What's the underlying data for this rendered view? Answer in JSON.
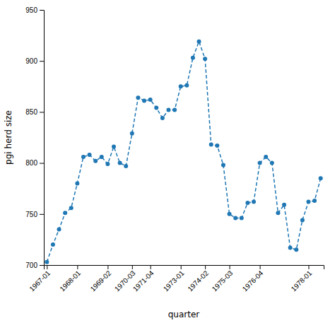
{
  "chart_data": {
    "type": "line",
    "title": "",
    "xlabel": "quarter",
    "ylabel": "pgi herd size",
    "categories": [
      "1967-01",
      null,
      null,
      null,
      null,
      "1968-01",
      null,
      null,
      null,
      null,
      "1969-02",
      null,
      null,
      null,
      "1970-03",
      null,
      null,
      "1971-04",
      null,
      null,
      null,
      null,
      "1973-01",
      null,
      null,
      null,
      "1974-02",
      null,
      null,
      null,
      "1975-03",
      null,
      null,
      null,
      null,
      "1976-04",
      null,
      null,
      null,
      null,
      null,
      null,
      null,
      "1978-01",
      null,
      null
    ],
    "values": [
      703,
      720,
      735,
      751,
      756,
      780,
      806,
      808,
      802,
      806,
      799,
      816,
      800,
      797,
      829,
      864,
      861,
      862,
      854,
      844,
      852,
      852,
      875,
      876,
      903,
      919,
      902,
      818,
      817,
      798,
      750,
      746,
      746,
      761,
      762,
      800,
      806,
      800,
      751,
      759,
      717,
      715,
      744,
      762,
      763,
      785
    ],
    "ylim": [
      700,
      950
    ],
    "yticks": [
      700,
      750,
      800,
      850,
      900,
      950
    ],
    "grid": false,
    "marker": "circle",
    "line_style": "dashed"
  }
}
